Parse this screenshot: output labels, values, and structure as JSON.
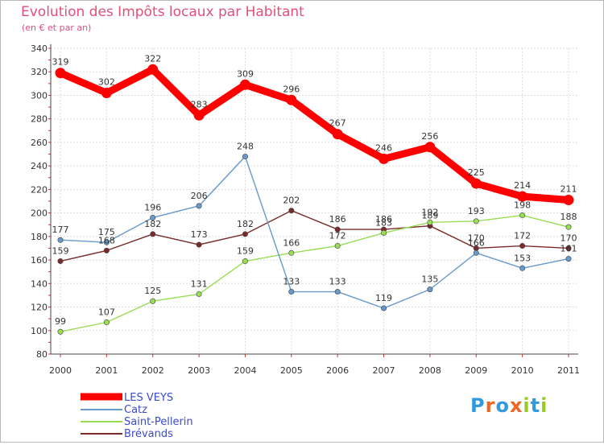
{
  "chart_data": {
    "type": "line",
    "title": "Evolution des Impôts locaux par Habitant",
    "subtitle": "(en € et par an)",
    "xlabel": "",
    "ylabel": "",
    "categories": [
      "2000",
      "2001",
      "2002",
      "2003",
      "2004",
      "2005",
      "2006",
      "2007",
      "2008",
      "2009",
      "2010",
      "2011"
    ],
    "ylim": [
      80,
      340
    ],
    "yticks": [
      "80",
      "100",
      "120",
      "140",
      "160",
      "180",
      "200",
      "220",
      "240",
      "260",
      "280",
      "300",
      "320",
      "340"
    ],
    "grid": true,
    "legend_position": "bottom-left",
    "series": [
      {
        "name": "LES VEYS",
        "color": "#ff0000",
        "values": [
          319,
          302,
          322,
          283,
          309,
          296,
          267,
          246,
          256,
          225,
          214,
          211
        ],
        "labels": [
          "319",
          "302",
          "322",
          "283",
          "309",
          "296",
          "267",
          "246",
          "256",
          "225",
          "214",
          "211"
        ]
      },
      {
        "name": "Catz",
        "color": "#6699cc",
        "values": [
          177,
          175,
          196,
          206,
          248,
          133,
          133,
          119,
          135,
          166,
          153,
          161
        ],
        "labels": [
          "177",
          "175",
          "196",
          "206",
          "248",
          "133",
          "133",
          "119",
          "135",
          "166",
          "153",
          "161"
        ]
      },
      {
        "name": "Saint-Pellerin",
        "color": "#99dd55",
        "values": [
          99,
          107,
          125,
          131,
          159,
          166,
          172,
          183,
          192,
          193,
          198,
          188
        ],
        "labels": [
          "99",
          "107",
          "125",
          "131",
          "159",
          "166",
          "172",
          "183",
          "192",
          "193",
          "198",
          "188"
        ]
      },
      {
        "name": "Brévands",
        "color": "#7a2a2a",
        "values": [
          159,
          168,
          182,
          173,
          182,
          202,
          186,
          186,
          189,
          170,
          172,
          170
        ],
        "labels": [
          "159",
          "168",
          "182",
          "173",
          "182",
          "202",
          "186",
          "186",
          "189",
          "170",
          "172",
          "170"
        ]
      }
    ]
  },
  "logo": {
    "text": "Proxiti",
    "letters": [
      "P",
      "r",
      "o",
      "x",
      "i",
      "t",
      "i"
    ],
    "colors": [
      "#3399dd",
      "#ee6622",
      "#3399dd",
      "#ee6622",
      "#99cc22",
      "#3399dd",
      "#99cc22"
    ]
  }
}
